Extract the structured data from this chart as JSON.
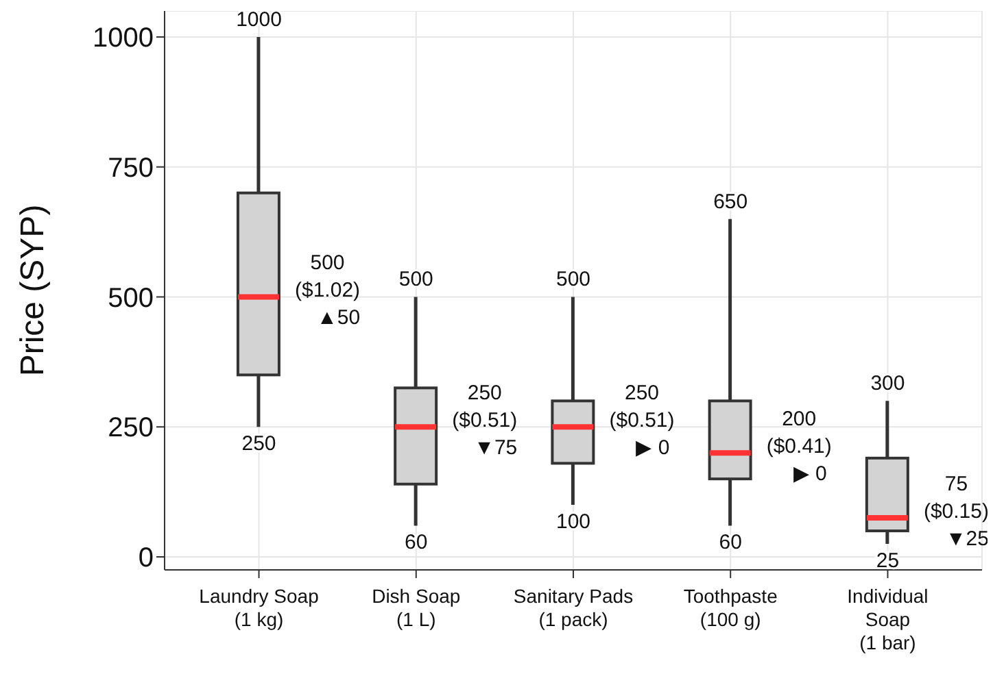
{
  "chart_data": {
    "type": "box",
    "ylabel": "Price (SYP)",
    "categories": [
      "Laundry Soap\n(1 kg)",
      "Dish Soap\n(1 L)",
      "Sanitary Pads\n(1 pack)",
      "Toothpaste\n(100 g)",
      "Individual\nSoap\n(1 bar)"
    ],
    "boxes": [
      {
        "low": 250,
        "q1": 350,
        "median": 500,
        "q3": 700,
        "high": 1000
      },
      {
        "low": 60,
        "q1": 140,
        "median": 250,
        "q3": 325,
        "high": 500
      },
      {
        "low": 100,
        "q1": 180,
        "median": 250,
        "q3": 300,
        "high": 500
      },
      {
        "low": 60,
        "q1": 150,
        "median": 200,
        "q3": 300,
        "high": 650
      },
      {
        "low": 25,
        "q1": 50,
        "median": 75,
        "q3": 190,
        "high": 300
      }
    ],
    "color": "#d3d3d3",
    "ylim": [
      -25,
      1050
    ],
    "yticks": [
      0,
      250,
      500,
      750,
      1000
    ],
    "grid": true,
    "annotations": [
      {
        "text": "1000",
        "x": "Laundry Soap\n(1 kg)",
        "y": 1000
      },
      {
        "text": "250",
        "x": "Laundry Soap\n(1 kg)",
        "y": 250
      },
      {
        "text": "500\n($1.02)\n▲50",
        "x": "Laundry Soap\n(1 kg)",
        "y": 500
      },
      {
        "text": "500",
        "x": "Dish Soap\n(1 L)",
        "y": 500
      },
      {
        "text": "60",
        "x": "Dish Soap\n(1 L)",
        "y": 60
      },
      {
        "text": "250\n($0.51)\n▼75",
        "x": "Dish Soap\n(1 L)",
        "y": 250
      },
      {
        "text": "500",
        "x": "Sanitary Pads\n(1 pack)",
        "y": 500
      },
      {
        "text": "100",
        "x": "Sanitary Pads\n(1 pack)",
        "y": 100
      },
      {
        "text": "250\n($0.51)\n▶ 0",
        "x": "Sanitary Pads\n(1 pack)",
        "y": 250
      },
      {
        "text": "650",
        "x": "Toothpaste\n(100 g)",
        "y": 650
      },
      {
        "text": "60",
        "x": "Toothpaste\n(100 g)",
        "y": 60
      },
      {
        "text": "200\n($0.41)\n▶ 0",
        "x": "Toothpaste\n(100 g)",
        "y": 200
      },
      {
        "text": "300",
        "x": "Individual\nSoap\n(1 bar)",
        "y": 300
      },
      {
        "text": "25",
        "x": "Individual\nSoap\n(1 bar)",
        "y": 25
      },
      {
        "text": "75\n($0.15)\n▼25",
        "x": "Individual\nSoap\n(1 bar)",
        "y": 75
      }
    ]
  }
}
